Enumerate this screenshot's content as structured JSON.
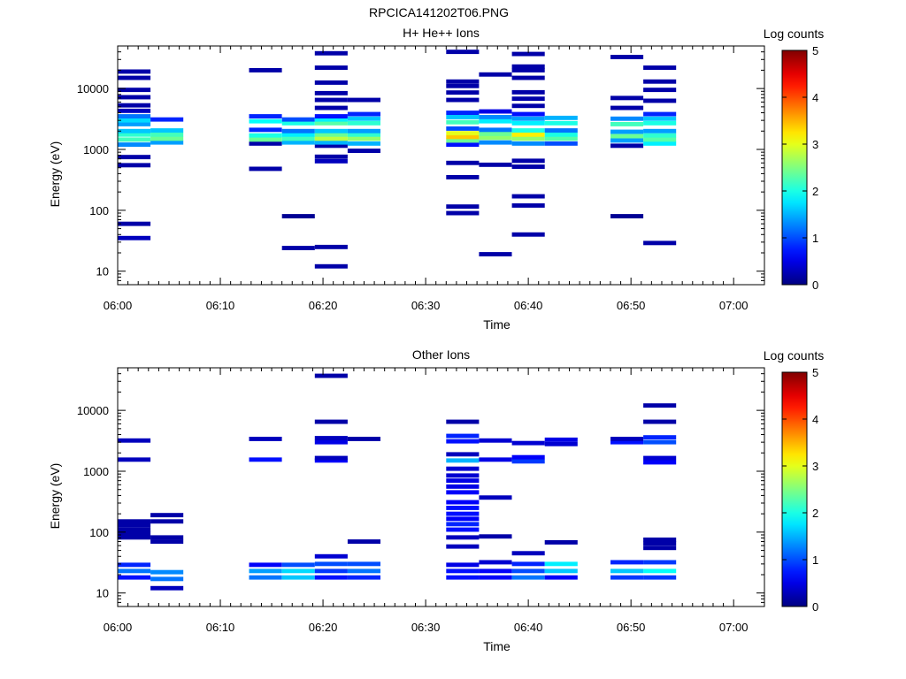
{
  "figure_title": "RPCICA141202T06.PNG",
  "chart_data": [
    {
      "type": "heatmap",
      "title": "H+ He++ Ions",
      "xlabel": "Time",
      "ylabel": "Energy (eV)",
      "x_ticks": [
        "06:00",
        "06:10",
        "06:20",
        "06:30",
        "06:40",
        "06:50",
        "07:00"
      ],
      "xlim_minutes": [
        0,
        63
      ],
      "y_scale": "log",
      "y_ticks": [
        10,
        100,
        1000,
        10000
      ],
      "y_tick_labels": [
        "10",
        "100",
        "1000",
        "10000"
      ],
      "ylim": [
        6,
        50000
      ],
      "colorbar": {
        "label": "Log counts",
        "range": [
          0,
          5
        ],
        "ticks": [
          "0",
          "1",
          "2",
          "3",
          "4",
          "5"
        ]
      },
      "columns": [
        {
          "t0": 0,
          "t1": 3.2,
          "cells": [
            [
              35,
              0.3
            ],
            [
              60,
              0.2
            ],
            [
              550,
              0.2
            ],
            [
              750,
              0.2
            ],
            [
              1200,
              1.3
            ],
            [
              1450,
              2.2
            ],
            [
              1750,
              2.1
            ],
            [
              2000,
              1.6
            ],
            [
              2600,
              1.4
            ],
            [
              3000,
              1.7
            ],
            [
              3500,
              1.2
            ],
            [
              4300,
              0.3
            ],
            [
              5300,
              0.2
            ],
            [
              7200,
              0.2
            ],
            [
              9500,
              0.2
            ],
            [
              15000,
              0.2
            ],
            [
              19000,
              0.2
            ]
          ]
        },
        {
          "t0": 3.2,
          "t1": 6.4,
          "cells": [
            [
              1300,
              1.4
            ],
            [
              1500,
              2.4
            ],
            [
              1750,
              2.2
            ],
            [
              2050,
              1.6
            ],
            [
              3100,
              0.8
            ]
          ]
        },
        {
          "t0": 12.8,
          "t1": 16,
          "cells": [
            [
              480,
              0.2
            ],
            [
              1250,
              0.2
            ],
            [
              1450,
              2.4
            ],
            [
              1700,
              2.0
            ],
            [
              2100,
              0.8
            ],
            [
              2900,
              1.9
            ],
            [
              3500,
              0.8
            ],
            [
              20000,
              0.2
            ]
          ]
        },
        {
          "t0": 16,
          "t1": 19.2,
          "cells": [
            [
              24,
              0.2
            ],
            [
              80,
              0.1
            ],
            [
              1300,
              1.5
            ],
            [
              1500,
              2.2
            ],
            [
              1750,
              1.8
            ],
            [
              2000,
              1.2
            ],
            [
              2700,
              2.0
            ],
            [
              3100,
              1.0
            ]
          ]
        },
        {
          "t0": 19.2,
          "t1": 22.4,
          "cells": [
            [
              12,
              0.2
            ],
            [
              25,
              0.2
            ],
            [
              640,
              0.3
            ],
            [
              760,
              0.2
            ],
            [
              1150,
              0.2
            ],
            [
              1300,
              1.5
            ],
            [
              1500,
              2.8
            ],
            [
              1750,
              2.4
            ],
            [
              2000,
              1.6
            ],
            [
              2700,
              2.3
            ],
            [
              3100,
              1.8
            ],
            [
              3500,
              0.7
            ],
            [
              4800,
              0.2
            ],
            [
              6500,
              0.2
            ],
            [
              8400,
              0.2
            ],
            [
              12500,
              0.2
            ],
            [
              22000,
              0.2
            ],
            [
              38000,
              0.2
            ]
          ]
        },
        {
          "t0": 22.4,
          "t1": 25.6,
          "cells": [
            [
              950,
              0.2
            ],
            [
              1250,
              1.5
            ],
            [
              1500,
              2.6
            ],
            [
              1750,
              2.1
            ],
            [
              2000,
              1.4
            ],
            [
              2700,
              2.1
            ],
            [
              3200,
              1.6
            ],
            [
              3800,
              0.8
            ],
            [
              6500,
              0.2
            ]
          ]
        },
        {
          "t0": 32,
          "t1": 35.2,
          "cells": [
            [
              90,
              0.2
            ],
            [
              115,
              0.2
            ],
            [
              350,
              0.2
            ],
            [
              600,
              0.2
            ],
            [
              1200,
              0.7
            ],
            [
              1400,
              2.4
            ],
            [
              1600,
              3.4
            ],
            [
              1850,
              3.0
            ],
            [
              2200,
              1.0
            ],
            [
              2800,
              2.2
            ],
            [
              3400,
              1.6
            ],
            [
              4000,
              0.8
            ],
            [
              6500,
              0.2
            ],
            [
              8600,
              0.2
            ],
            [
              11000,
              0.2
            ],
            [
              13000,
              0.2
            ],
            [
              40000,
              0.2
            ]
          ]
        },
        {
          "t0": 35.2,
          "t1": 38.4,
          "cells": [
            [
              19,
              0.2
            ],
            [
              560,
              0.2
            ],
            [
              1300,
              1.3
            ],
            [
              1550,
              2.6
            ],
            [
              1800,
              2.4
            ],
            [
              2100,
              1.2
            ],
            [
              2900,
              1.8
            ],
            [
              3400,
              1.3
            ],
            [
              4200,
              0.5
            ],
            [
              17000,
              0.2
            ]
          ]
        },
        {
          "t0": 38.4,
          "t1": 41.6,
          "cells": [
            [
              40,
              0.2
            ],
            [
              120,
              0.2
            ],
            [
              170,
              0.2
            ],
            [
              520,
              0.2
            ],
            [
              650,
              0.2
            ],
            [
              1250,
              1.3
            ],
            [
              1500,
              2.6
            ],
            [
              1750,
              3.2
            ],
            [
              2050,
              2.0
            ],
            [
              2700,
              1.8
            ],
            [
              3200,
              1.4
            ],
            [
              3800,
              0.7
            ],
            [
              5200,
              0.2
            ],
            [
              6800,
              0.2
            ],
            [
              8700,
              0.2
            ],
            [
              15000,
              0.2
            ],
            [
              20000,
              0.2
            ],
            [
              23000,
              0.2
            ],
            [
              37000,
              0.2
            ]
          ]
        },
        {
          "t0": 41.6,
          "t1": 44.8,
          "cells": [
            [
              1250,
              1.0
            ],
            [
              1500,
              2.3
            ],
            [
              1750,
              2.0
            ],
            [
              2050,
              1.2
            ],
            [
              2700,
              2.0
            ],
            [
              3300,
              1.5
            ]
          ]
        },
        {
          "t0": 48,
          "t1": 51.2,
          "cells": [
            [
              80,
              0.1
            ],
            [
              1150,
              0.2
            ],
            [
              1400,
              1.4
            ],
            [
              1650,
              2.4
            ],
            [
              1950,
              1.4
            ],
            [
              2600,
              2.2
            ],
            [
              3200,
              1.3
            ],
            [
              4800,
              0.2
            ],
            [
              7000,
              0.2
            ],
            [
              33000,
              0.2
            ]
          ]
        },
        {
          "t0": 51.2,
          "t1": 54.4,
          "cells": [
            [
              29,
              0.2
            ],
            [
              1250,
              1.8
            ],
            [
              1450,
              2.3
            ],
            [
              1700,
              2.1
            ],
            [
              2000,
              1.4
            ],
            [
              2700,
              2.0
            ],
            [
              3200,
              1.6
            ],
            [
              3800,
              0.8
            ],
            [
              6300,
              0.2
            ],
            [
              9500,
              0.2
            ],
            [
              13000,
              0.2
            ],
            [
              22000,
              0.2
            ]
          ]
        }
      ]
    },
    {
      "type": "heatmap",
      "title": "Other Ions",
      "xlabel": "Time",
      "ylabel": "Energy (eV)",
      "x_ticks": [
        "06:00",
        "06:10",
        "06:20",
        "06:30",
        "06:40",
        "06:50",
        "07:00"
      ],
      "xlim_minutes": [
        0,
        63
      ],
      "y_scale": "log",
      "y_ticks": [
        10,
        100,
        1000,
        10000
      ],
      "y_tick_labels": [
        "10",
        "100",
        "1000",
        "10000"
      ],
      "ylim": [
        6,
        50000
      ],
      "colorbar": {
        "label": "Log counts",
        "range": [
          0,
          5
        ],
        "ticks": [
          "0",
          "1",
          "2",
          "3",
          "4",
          "5"
        ]
      },
      "columns": [
        {
          "t0": 0,
          "t1": 3.2,
          "cells": [
            [
              18,
              0.7
            ],
            [
              23,
              1.2
            ],
            [
              29,
              0.8
            ],
            [
              82,
              0.2
            ],
            [
              95,
              0.2
            ],
            [
              110,
              0.2
            ],
            [
              130,
              0.2
            ],
            [
              150,
              0.2
            ],
            [
              1550,
              0.3
            ],
            [
              3200,
              0.3
            ]
          ]
        },
        {
          "t0": 3.2,
          "t1": 6.4,
          "cells": [
            [
              12,
              0.3
            ],
            [
              17,
              1.2
            ],
            [
              22,
              1.3
            ],
            [
              70,
              0.2
            ],
            [
              82,
              0.2
            ],
            [
              150,
              0.2
            ],
            [
              190,
              0.2
            ]
          ]
        },
        {
          "t0": 12.8,
          "t1": 16,
          "cells": [
            [
              18,
              1.2
            ],
            [
              23,
              1.4
            ],
            [
              29,
              0.6
            ],
            [
              1550,
              0.7
            ],
            [
              3400,
              0.3
            ]
          ]
        },
        {
          "t0": 16,
          "t1": 19.2,
          "cells": [
            [
              18,
              1.6
            ],
            [
              23,
              1.7
            ],
            [
              29,
              1.0
            ]
          ]
        },
        {
          "t0": 19.2,
          "t1": 22.4,
          "cells": [
            [
              18,
              0.7
            ],
            [
              23,
              0.9
            ],
            [
              30,
              1.0
            ],
            [
              40,
              0.4
            ],
            [
              1500,
              0.6
            ],
            [
              1650,
              0.3
            ],
            [
              3000,
              0.5
            ],
            [
              3500,
              0.3
            ],
            [
              6500,
              0.2
            ],
            [
              37000,
              0.2
            ]
          ]
        },
        {
          "t0": 22.4,
          "t1": 25.6,
          "cells": [
            [
              18,
              0.8
            ],
            [
              23,
              1.2
            ],
            [
              30,
              1.0
            ],
            [
              70,
              0.2
            ],
            [
              3400,
              0.2
            ]
          ]
        },
        {
          "t0": 32,
          "t1": 35.2,
          "cells": [
            [
              18,
              0.7
            ],
            [
              23,
              0.7
            ],
            [
              29,
              0.5
            ],
            [
              58,
              0.3
            ],
            [
              82,
              0.3
            ],
            [
              110,
              0.7
            ],
            [
              135,
              0.8
            ],
            [
              165,
              0.6
            ],
            [
              200,
              0.7
            ],
            [
              250,
              0.7
            ],
            [
              310,
              0.6
            ],
            [
              450,
              0.6
            ],
            [
              560,
              0.5
            ],
            [
              700,
              0.5
            ],
            [
              850,
              0.4
            ],
            [
              1100,
              0.4
            ],
            [
              1500,
              1.5
            ],
            [
              1900,
              0.3
            ],
            [
              3100,
              0.7
            ],
            [
              3800,
              0.8
            ],
            [
              6500,
              0.2
            ]
          ]
        },
        {
          "t0": 35.2,
          "t1": 38.4,
          "cells": [
            [
              18,
              0.6
            ],
            [
              23,
              0.6
            ],
            [
              32,
              0.4
            ],
            [
              85,
              0.2
            ],
            [
              370,
              0.3
            ],
            [
              1550,
              0.5
            ],
            [
              3200,
              0.4
            ]
          ]
        },
        {
          "t0": 38.4,
          "t1": 41.6,
          "cells": [
            [
              18,
              1.2
            ],
            [
              23,
              1.0
            ],
            [
              30,
              0.8
            ],
            [
              45,
              0.3
            ],
            [
              1450,
              0.9
            ],
            [
              1700,
              0.6
            ],
            [
              2900,
              0.4
            ]
          ]
        },
        {
          "t0": 41.6,
          "t1": 44.8,
          "cells": [
            [
              18,
              0.6
            ],
            [
              23,
              1.6
            ],
            [
              30,
              1.8
            ],
            [
              68,
              0.2
            ],
            [
              2800,
              0.4
            ],
            [
              3300,
              0.5
            ]
          ]
        },
        {
          "t0": 48,
          "t1": 51.2,
          "cells": [
            [
              18,
              0.9
            ],
            [
              23,
              1.6
            ],
            [
              32,
              0.8
            ],
            [
              3000,
              0.7
            ],
            [
              3400,
              0.3
            ]
          ]
        },
        {
          "t0": 51.2,
          "t1": 54.4,
          "cells": [
            [
              18,
              0.9
            ],
            [
              23,
              1.9
            ],
            [
              32,
              0.9
            ],
            [
              55,
              0.2
            ],
            [
              65,
              0.2
            ],
            [
              75,
              0.2
            ],
            [
              1400,
              0.6
            ],
            [
              1650,
              0.4
            ],
            [
              3000,
              1.0
            ],
            [
              3600,
              0.8
            ],
            [
              6500,
              0.2
            ],
            [
              12000,
              0.2
            ]
          ]
        }
      ]
    }
  ]
}
